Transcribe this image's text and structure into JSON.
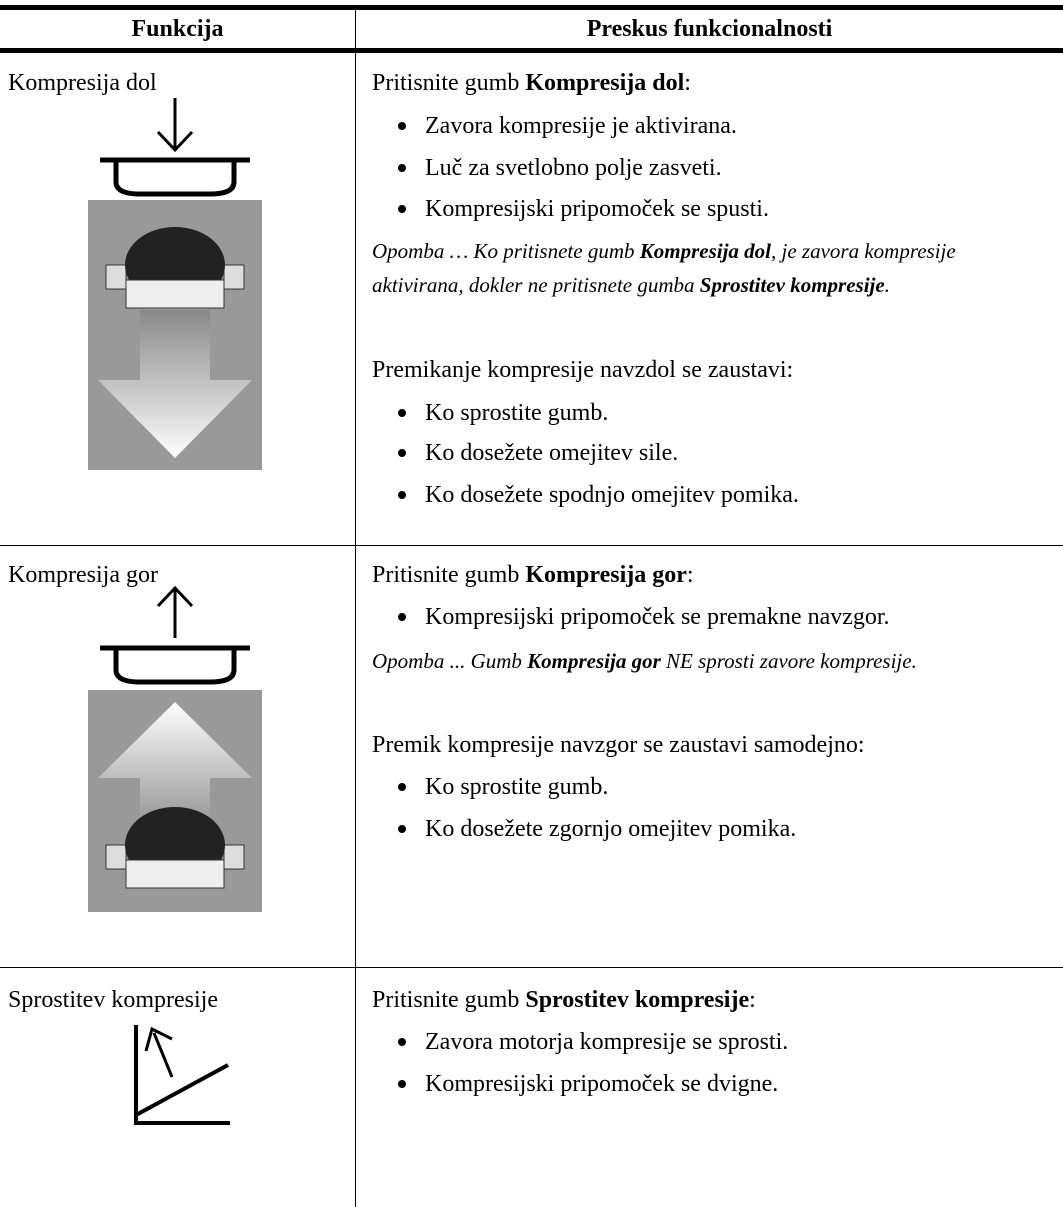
{
  "header": {
    "col1": "Funkcija",
    "col2": "Preskus funkcionalnosti"
  },
  "rows": [
    {
      "function": "Kompresija dol",
      "intro": [
        "Pritisnite gumb ",
        "Kompresija dol",
        ":"
      ],
      "bullets": [
        "Zavora kompresije je aktivirana.",
        "Luč za svetlobno polje zasveti.",
        "Kompresijski pripomoček se spusti."
      ],
      "note": [
        "Opomba … Ko pritisnete gumb ",
        "Kompresija dol",
        ", je zavora kompresije aktivirana, dokler ne pritisnete gumba ",
        "Sprostitev kompresije",
        "."
      ],
      "stop": "Premikanje kompresije navzdol se zaustavi:",
      "stop_bullets": [
        "Ko sprostite gumb.",
        "Ko dosežete omejitev sile.",
        "Ko dosežete spodnjo omejitev pomika."
      ]
    },
    {
      "function": "Kompresija gor",
      "intro": [
        "Pritisnite gumb ",
        "Kompresija gor",
        ":"
      ],
      "bullets": [
        "Kompresijski pripomoček se premakne navzgor."
      ],
      "note": [
        "Opomba ... Gumb ",
        "Kompresija gor",
        " NE sprosti zavore kompresije."
      ],
      "stop": "Premik kompresije navzgor se zaustavi samodejno:",
      "stop_bullets": [
        "Ko sprostite gumb.",
        "Ko dosežete zgornjo omejitev pomika."
      ]
    },
    {
      "function": "Sprostitev kompresije",
      "intro": [
        "Pritisnite gumb ",
        "Sprostitev kompresije",
        ":"
      ],
      "bullets": [
        "Zavora motorja kompresije se sprosti.",
        "Kompresijski pripomoček se dvigne."
      ]
    }
  ]
}
